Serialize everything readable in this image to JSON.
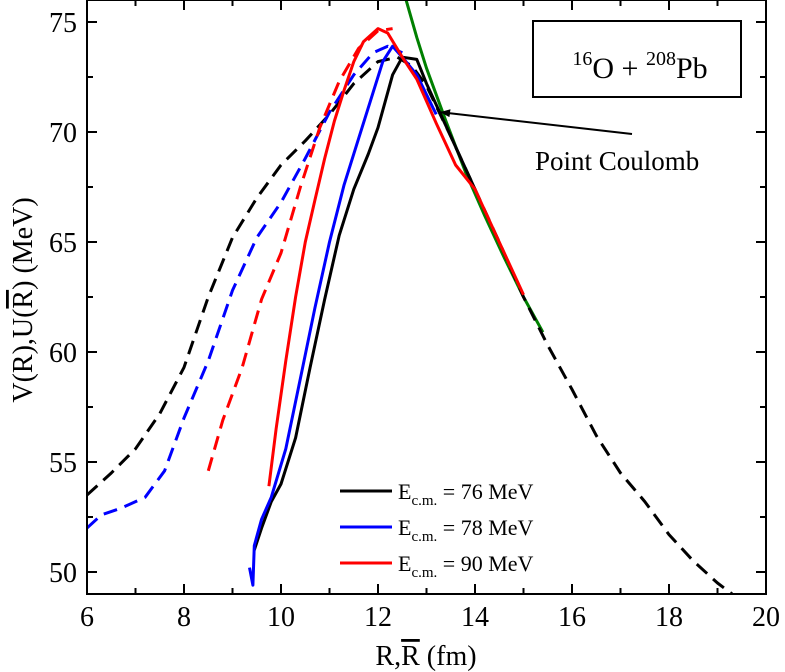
{
  "chart_data": {
    "type": "line",
    "title": "",
    "xlabel": "R,R (fm)",
    "xlabel_parts": {
      "a": "R,",
      "b": "R",
      "c": " (fm)"
    },
    "ylabel": "V(R),U(R) (MeV)",
    "ylabel_parts": {
      "a": "V(R),U(",
      "b": "R",
      "c": ") (MeV)"
    },
    "xlim": [
      6,
      20
    ],
    "ylim": [
      49,
      76
    ],
    "xticks": [
      6,
      8,
      10,
      12,
      14,
      16,
      18,
      20
    ],
    "yticks": [
      50,
      55,
      60,
      65,
      70,
      75
    ],
    "system_label": {
      "s1": "16",
      "s2": "O + ",
      "s3": "208",
      "s4": "Pb"
    },
    "annotation": {
      "text": "Point Coulomb",
      "target": [
        13.3,
        70.9
      ],
      "text_pos": [
        14.2,
        69.5
      ]
    },
    "legend": {
      "placement": "bottom-center",
      "entries": [
        {
          "sym": "E",
          "sub": "c.m.",
          "rest": " = 76 MeV",
          "color": "#000000"
        },
        {
          "sym": "E",
          "sub": "c.m.",
          "rest": " = 78 MeV",
          "color": "#0000ff"
        },
        {
          "sym": "E",
          "sub": "c.m.",
          "rest": " = 90 MeV",
          "color": "#ff0000"
        }
      ]
    },
    "series": [
      {
        "name": "Point Coulomb",
        "color": "#008000",
        "dash": "solid",
        "x": [
          12.5,
          12.8,
          13.0,
          13.4,
          13.8,
          14.2,
          14.6,
          15.0,
          15.4
        ],
        "y": [
          76.6,
          74.3,
          72.9,
          70.5,
          68.2,
          66.2,
          64.3,
          62.5,
          60.9
        ]
      },
      {
        "name": "U 76 MeV",
        "color": "#000000",
        "dash": "dashed",
        "x": [
          6.0,
          6.5,
          7.0,
          7.5,
          8.0,
          8.5,
          9.0,
          9.5,
          10.0,
          10.5,
          11.0,
          11.5,
          12.0,
          12.4,
          12.7,
          13.0,
          13.5,
          14.0,
          14.5,
          15.0,
          15.5,
          16.0,
          16.5,
          17.0,
          17.5,
          18.0,
          18.5,
          19.0,
          19.3
        ],
        "y": [
          53.5,
          54.5,
          55.6,
          57.2,
          59.3,
          62.5,
          65.2,
          67.0,
          68.5,
          69.6,
          70.8,
          72.2,
          73.2,
          73.4,
          73.0,
          72.1,
          69.8,
          67.4,
          65.0,
          62.5,
          60.3,
          58.3,
          56.2,
          54.5,
          53.2,
          51.7,
          50.5,
          49.5,
          49.0
        ]
      },
      {
        "name": "U 78 MeV",
        "color": "#0000ff",
        "dash": "dashed",
        "x": [
          6.0,
          6.3,
          6.7,
          7.2,
          7.6,
          8.0,
          8.5,
          9.0,
          9.5,
          10.0,
          10.5,
          11.0,
          11.5,
          11.9,
          12.2,
          12.5
        ],
        "y": [
          52.0,
          52.6,
          52.9,
          53.4,
          54.6,
          57.0,
          59.6,
          62.8,
          65.2,
          66.8,
          68.8,
          70.9,
          72.6,
          73.6,
          73.9,
          73.6
        ]
      },
      {
        "name": "U 90 MeV",
        "color": "#ff0000",
        "dash": "dashed",
        "x": [
          8.5,
          8.8,
          9.2,
          9.6,
          10.0,
          10.4,
          10.8,
          11.2,
          11.6,
          12.0,
          12.3
        ],
        "y": [
          54.6,
          56.9,
          59.3,
          62.4,
          64.5,
          67.5,
          70.2,
          72.3,
          73.8,
          74.6,
          74.7
        ]
      },
      {
        "name": "V 76 MeV",
        "color": "#000000",
        "dash": "solid",
        "x": [
          9.45,
          9.6,
          9.8,
          10.0,
          10.3,
          10.6,
          10.9,
          11.2,
          11.5,
          11.8,
          12.0,
          12.3,
          12.5,
          12.8,
          13.0,
          13.5,
          14.0
        ],
        "y": [
          51.0,
          52.0,
          53.2,
          54.0,
          56.1,
          59.3,
          62.4,
          65.3,
          67.4,
          69.0,
          70.2,
          72.6,
          73.4,
          73.3,
          72.2,
          69.8,
          67.4
        ]
      },
      {
        "name": "V 78 MeV",
        "color": "#0000ff",
        "dash": "solid",
        "x": [
          9.35,
          9.42,
          9.45,
          9.6,
          9.8,
          10.1,
          10.4,
          10.7,
          11.0,
          11.3,
          11.6,
          11.9,
          12.1,
          12.3,
          12.5,
          12.8,
          13.2
        ],
        "y": [
          50.2,
          49.4,
          51.2,
          52.4,
          53.4,
          55.6,
          58.8,
          62.0,
          65.0,
          67.6,
          69.7,
          71.8,
          73.2,
          73.9,
          73.4,
          72.6,
          70.8
        ]
      },
      {
        "name": "V 90 MeV",
        "color": "#ff0000",
        "dash": "solid",
        "x": [
          9.75,
          9.9,
          10.1,
          10.3,
          10.5,
          10.7,
          10.9,
          11.1,
          11.3,
          11.5,
          11.7,
          12.0,
          12.2,
          12.5,
          12.8,
          13.2,
          13.6,
          14.0,
          14.5,
          15.0
        ],
        "y": [
          53.9,
          56.5,
          59.6,
          62.5,
          65.0,
          66.9,
          68.8,
          70.5,
          71.9,
          73.2,
          74.1,
          74.7,
          74.5,
          73.4,
          72.4,
          70.4,
          68.5,
          67.4,
          65.0,
          62.6
        ]
      }
    ]
  }
}
